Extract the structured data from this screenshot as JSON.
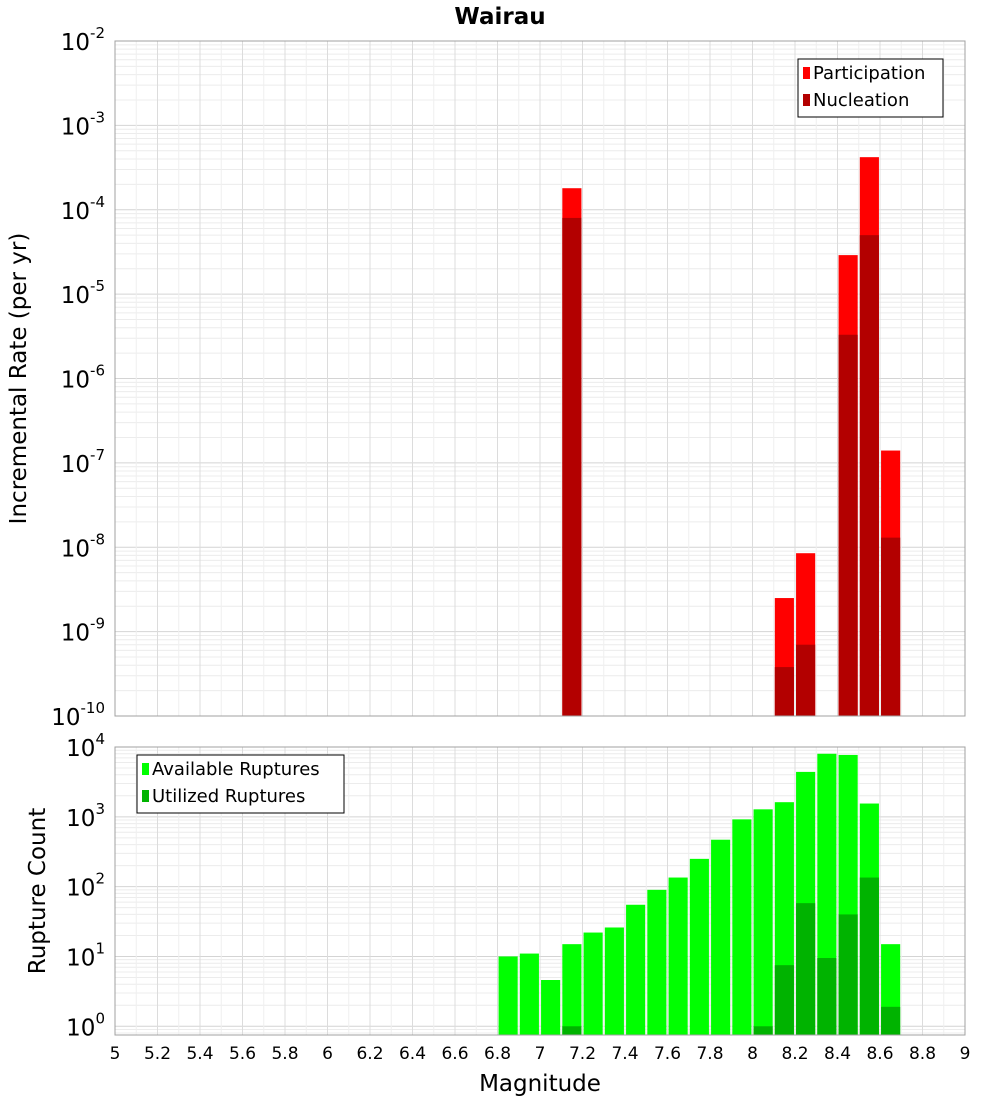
{
  "chart_data": [
    {
      "type": "bar",
      "title": "Wairau",
      "xlabel": "",
      "ylabel": "Incremental Rate (per yr)",
      "yscale": "log",
      "ylim": [
        1e-10,
        0.01
      ],
      "xlim": [
        5,
        9
      ],
      "ytick_labels": [
        {
          "base": "10",
          "exp": "-10"
        },
        {
          "base": "10",
          "exp": "-9"
        },
        {
          "base": "10",
          "exp": "-8"
        },
        {
          "base": "10",
          "exp": "-7"
        },
        {
          "base": "10",
          "exp": "-6"
        },
        {
          "base": "10",
          "exp": "-5"
        },
        {
          "base": "10",
          "exp": "-4"
        },
        {
          "base": "10",
          "exp": "-3"
        },
        {
          "base": "10",
          "exp": "-2"
        }
      ],
      "grid": true,
      "legend_position": "top-right",
      "bar_width": 0.09,
      "series": [
        {
          "name": "Participation",
          "color": "#ff0000",
          "points": [
            {
              "x": 7.15,
              "y": 0.00018
            },
            {
              "x": 8.15,
              "y": 2.5e-09
            },
            {
              "x": 8.25,
              "y": 8.5e-09
            },
            {
              "x": 8.45,
              "y": 2.9e-05
            },
            {
              "x": 8.55,
              "y": 0.00042
            },
            {
              "x": 8.65,
              "y": 1.4e-07
            }
          ]
        },
        {
          "name": "Nucleation",
          "color": "#b30000",
          "points": [
            {
              "x": 7.15,
              "y": 8e-05
            },
            {
              "x": 8.15,
              "y": 3.8e-10
            },
            {
              "x": 8.25,
              "y": 7e-10
            },
            {
              "x": 8.45,
              "y": 3.3e-06
            },
            {
              "x": 8.55,
              "y": 5e-05
            },
            {
              "x": 8.65,
              "y": 1.3e-08
            }
          ]
        }
      ]
    },
    {
      "type": "bar",
      "title": "",
      "xlabel": "Magnitude",
      "ylabel": "Rupture Count",
      "yscale": "log",
      "ylim": [
        0.75,
        10000
      ],
      "xlim": [
        5,
        9
      ],
      "ytick_labels": [
        {
          "base": "10",
          "exp": "0"
        },
        {
          "base": "10",
          "exp": "1"
        },
        {
          "base": "10",
          "exp": "2"
        },
        {
          "base": "10",
          "exp": "3"
        },
        {
          "base": "10",
          "exp": "4"
        }
      ],
      "xtick_labels": [
        "5",
        "5.2",
        "5.4",
        "5.6",
        "5.8",
        "6",
        "6.2",
        "6.4",
        "6.6",
        "6.8",
        "7",
        "7.2",
        "7.4",
        "7.6",
        "7.8",
        "8",
        "8.2",
        "8.4",
        "8.6",
        "8.8",
        "9"
      ],
      "grid": true,
      "legend_position": "top-left",
      "bar_width": 0.09,
      "series": [
        {
          "name": "Available Ruptures",
          "color": "#00ff00",
          "points": [
            {
              "x": 6.85,
              "y": 10
            },
            {
              "x": 6.95,
              "y": 11
            },
            {
              "x": 7.05,
              "y": 4.6
            },
            {
              "x": 7.15,
              "y": 15
            },
            {
              "x": 7.25,
              "y": 22
            },
            {
              "x": 7.35,
              "y": 26
            },
            {
              "x": 7.45,
              "y": 55
            },
            {
              "x": 7.55,
              "y": 90
            },
            {
              "x": 7.65,
              "y": 135
            },
            {
              "x": 7.75,
              "y": 250
            },
            {
              "x": 7.85,
              "y": 470
            },
            {
              "x": 7.95,
              "y": 920
            },
            {
              "x": 8.05,
              "y": 1280
            },
            {
              "x": 8.15,
              "y": 1620
            },
            {
              "x": 8.25,
              "y": 4400
            },
            {
              "x": 8.35,
              "y": 8000
            },
            {
              "x": 8.45,
              "y": 7700
            },
            {
              "x": 8.55,
              "y": 1550
            },
            {
              "x": 8.65,
              "y": 15
            }
          ]
        },
        {
          "name": "Utilized Ruptures",
          "color": "#00b300",
          "points": [
            {
              "x": 7.15,
              "y": 1
            },
            {
              "x": 8.05,
              "y": 1
            },
            {
              "x": 8.15,
              "y": 7.5
            },
            {
              "x": 8.25,
              "y": 58
            },
            {
              "x": 8.35,
              "y": 9.5
            },
            {
              "x": 8.45,
              "y": 40
            },
            {
              "x": 8.55,
              "y": 135
            },
            {
              "x": 8.65,
              "y": 1.9
            }
          ]
        }
      ]
    }
  ]
}
